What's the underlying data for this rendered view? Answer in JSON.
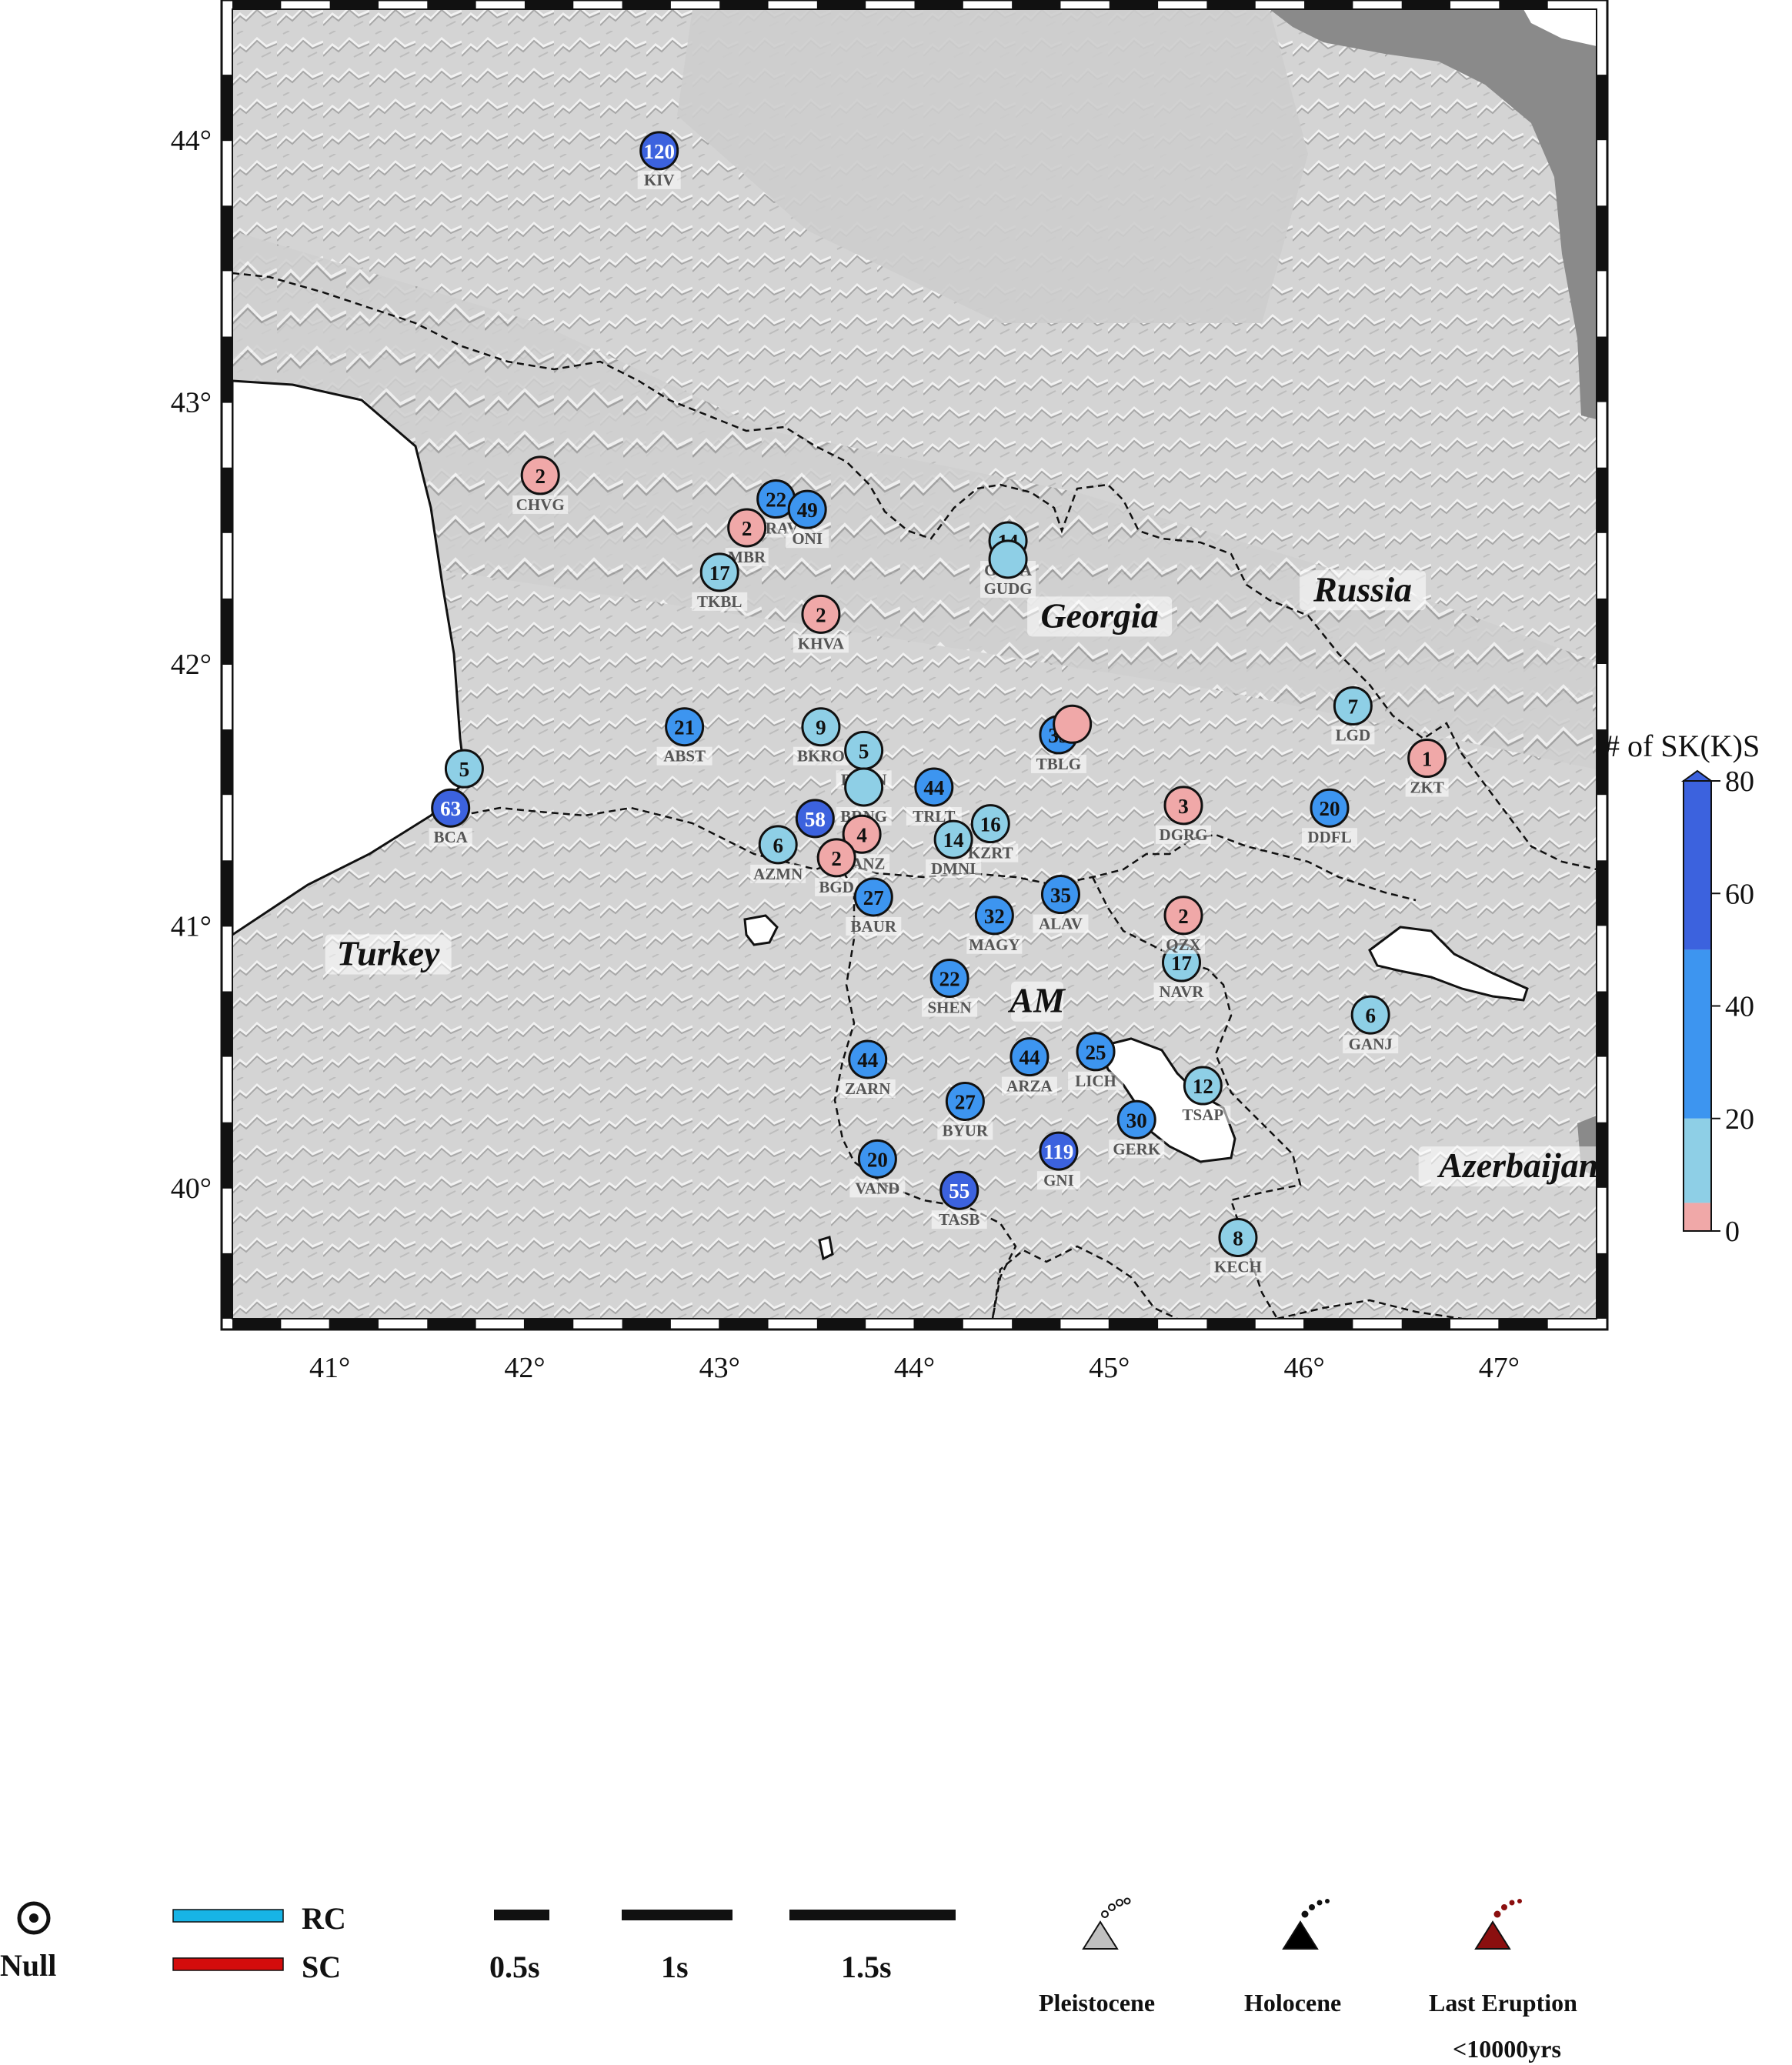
{
  "lon_range": [
    40.5,
    47.5
  ],
  "lat_range": [
    39.5,
    44.5
  ],
  "lon_ticks": [
    {
      "v": 41,
      "t": "41°"
    },
    {
      "v": 42,
      "t": "42°"
    },
    {
      "v": 43,
      "t": "43°"
    },
    {
      "v": 44,
      "t": "44°"
    },
    {
      "v": 45,
      "t": "45°"
    },
    {
      "v": 46,
      "t": "46°"
    },
    {
      "v": 47,
      "t": "47°"
    }
  ],
  "lat_ticks": [
    {
      "v": 44,
      "t": "44°"
    },
    {
      "v": 43,
      "t": "43°"
    },
    {
      "v": 42,
      "t": "42°"
    },
    {
      "v": 41,
      "t": "41°"
    },
    {
      "v": 40,
      "t": "40°"
    }
  ],
  "regions": [
    {
      "name": "Georgia",
      "lon": 44.95,
      "lat": 42.14
    },
    {
      "name": "Russia",
      "lon": 46.3,
      "lat": 42.24
    },
    {
      "name": "Turkey",
      "lon": 41.3,
      "lat": 40.85
    },
    {
      "name": "AM",
      "lon": 44.63,
      "lat": 40.67
    },
    {
      "name": "Azerbaijan",
      "lon": 47.1,
      "lat": 40.04
    }
  ],
  "stations": [
    {
      "code": "KIV",
      "n": "120",
      "lon": 42.69,
      "lat": 43.96
    },
    {
      "code": "CHVG",
      "n": "2",
      "lon": 42.08,
      "lat": 42.72
    },
    {
      "code": "URAV",
      "n": "22",
      "lon": 43.29,
      "lat": 42.63
    },
    {
      "code": "ONI",
      "n": "49",
      "lon": 43.45,
      "lat": 42.59
    },
    {
      "code": "MBR",
      "n": "2",
      "lon": 43.14,
      "lat": 42.52
    },
    {
      "code": "TKBL",
      "n": "17",
      "lon": 43.0,
      "lat": 42.35
    },
    {
      "code": "GUDA",
      "n": "14",
      "lon": 44.48,
      "lat": 42.47
    },
    {
      "code": "GUDG",
      "n": "",
      "lon": 44.48,
      "lat": 42.4
    },
    {
      "code": "KHVA",
      "n": "2",
      "lon": 43.52,
      "lat": 42.19
    },
    {
      "code": "ABST",
      "n": "21",
      "lon": 42.82,
      "lat": 41.76
    },
    {
      "code": "BKRO",
      "n": "9",
      "lon": 43.52,
      "lat": 41.76
    },
    {
      "code": "BURN",
      "n": "5",
      "lon": 43.74,
      "lat": 41.67
    },
    {
      "code": "BRNG",
      "n": "",
      "lon": 43.74,
      "lat": 41.53
    },
    {
      "code": "TBLG",
      "n": "35",
      "lon": 44.74,
      "lat": 41.73
    },
    {
      "code": "",
      "n": "",
      "lon": 44.81,
      "lat": 41.77
    },
    {
      "code": "LGD",
      "n": "7",
      "lon": 46.25,
      "lat": 41.84
    },
    {
      "code": "ZKT",
      "n": "1",
      "lon": 46.63,
      "lat": 41.64
    },
    {
      "code": "",
      "n": "5",
      "lon": 41.69,
      "lat": 41.6
    },
    {
      "code": "BCA",
      "n": "63",
      "lon": 41.62,
      "lat": 41.45
    },
    {
      "code": "TRLT",
      "n": "44",
      "lon": 44.1,
      "lat": 41.53
    },
    {
      "code": "KZRT",
      "n": "16",
      "lon": 44.39,
      "lat": 41.39
    },
    {
      "code": "DMNI",
      "n": "14",
      "lon": 44.2,
      "lat": 41.33
    },
    {
      "code": "",
      "n": "58",
      "lon": 43.49,
      "lat": 41.41
    },
    {
      "code": "GANZ",
      "n": "4",
      "lon": 43.73,
      "lat": 41.35
    },
    {
      "code": "AZMN",
      "n": "6",
      "lon": 43.3,
      "lat": 41.31
    },
    {
      "code": "BGD",
      "n": "2",
      "lon": 43.6,
      "lat": 41.26
    },
    {
      "code": "BAUR",
      "n": "27",
      "lon": 43.79,
      "lat": 41.11
    },
    {
      "code": "DGRG",
      "n": "3",
      "lon": 45.38,
      "lat": 41.46
    },
    {
      "code": "DDFL",
      "n": "20",
      "lon": 46.13,
      "lat": 41.45
    },
    {
      "code": "ALAV",
      "n": "35",
      "lon": 44.75,
      "lat": 41.12
    },
    {
      "code": "MAGY",
      "n": "32",
      "lon": 44.41,
      "lat": 41.04
    },
    {
      "code": "NAVR",
      "n": "17",
      "lon": 45.37,
      "lat": 40.86
    },
    {
      "code": "QZX",
      "n": "2",
      "lon": 45.38,
      "lat": 41.04
    },
    {
      "code": "SHEN",
      "n": "22",
      "lon": 44.18,
      "lat": 40.8
    },
    {
      "code": "GANJ",
      "n": "6",
      "lon": 46.34,
      "lat": 40.66
    },
    {
      "code": "ZARN",
      "n": "44",
      "lon": 43.76,
      "lat": 40.49
    },
    {
      "code": "ARZA",
      "n": "44",
      "lon": 44.59,
      "lat": 40.5
    },
    {
      "code": "LICH",
      "n": "25",
      "lon": 44.93,
      "lat": 40.52
    },
    {
      "code": "TSAP",
      "n": "12",
      "lon": 45.48,
      "lat": 40.39
    },
    {
      "code": "BYUR",
      "n": "27",
      "lon": 44.26,
      "lat": 40.33
    },
    {
      "code": "GERK",
      "n": "30",
      "lon": 45.14,
      "lat": 40.26
    },
    {
      "code": "GNI",
      "n": "119",
      "lon": 44.74,
      "lat": 40.14
    },
    {
      "code": "VAND",
      "n": "20",
      "lon": 43.81,
      "lat": 40.11
    },
    {
      "code": "TASB",
      "n": "55",
      "lon": 44.23,
      "lat": 39.99
    },
    {
      "code": "KECH",
      "n": "8",
      "lon": 45.66,
      "lat": 39.81
    }
  ],
  "colorbar": {
    "title": "# of SK(K)S",
    "ticks": [
      {
        "v": 0,
        "t": "0"
      },
      {
        "v": 20,
        "t": "20"
      },
      {
        "v": 40,
        "t": "40"
      },
      {
        "v": 60,
        "t": "60"
      },
      {
        "v": 80,
        "t": "80"
      }
    ],
    "bins": [
      {
        "from": 0,
        "to": 5,
        "color": "#f0a8a8"
      },
      {
        "from": 5,
        "to": 20,
        "color": "#8ecfe6"
      },
      {
        "from": 20,
        "to": 50,
        "color": "#3d95f0"
      },
      {
        "from": 50,
        "to": 80,
        "color": "#3c62de"
      }
    ]
  },
  "colors": {
    "ocean": "#ffffff",
    "caspian": "#8a8a8a",
    "land": "#d2d2d2",
    "border": "#111111"
  },
  "legend": {
    "null_label": "Null",
    "rc_label": "RC",
    "rc_color": "#17b4e6",
    "sc_label": "SC",
    "sc_color": "#d40c0c",
    "scale_labels": [
      "0.5s",
      "1s",
      "1.5s"
    ],
    "volcanoes": [
      {
        "label": "Pleistocene",
        "sub": "",
        "color": "#c0c0c0"
      },
      {
        "label": "Holocene",
        "sub": "",
        "color": "#000000"
      },
      {
        "label": "Last Eruption",
        "sub": "<10000yrs",
        "color": "#8b0f0f"
      }
    ]
  }
}
